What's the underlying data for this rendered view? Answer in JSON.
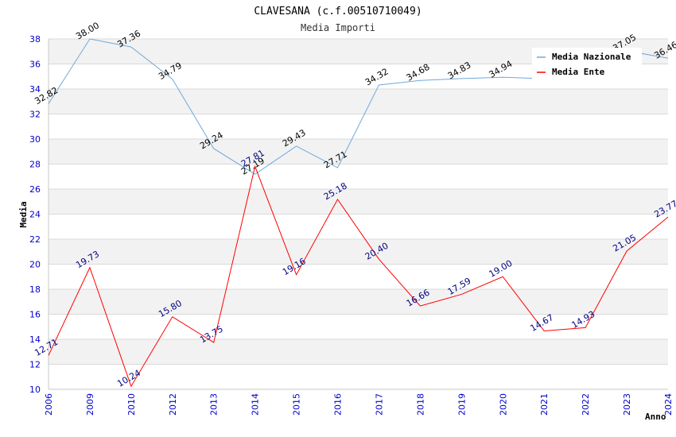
{
  "chart_data": {
    "type": "line",
    "title": "CLAVESANA (c.f.00510710049)",
    "subtitle": "Media Importi",
    "xlabel": "Anno",
    "ylabel": "Media",
    "ylim": [
      10,
      38
    ],
    "yticks": [
      10,
      12,
      14,
      16,
      18,
      20,
      22,
      24,
      26,
      28,
      30,
      32,
      34,
      36,
      38
    ],
    "categories": [
      "2006",
      "2009",
      "2010",
      "2012",
      "2013",
      "2014",
      "2015",
      "2016",
      "2017",
      "2018",
      "2019",
      "2020",
      "2021",
      "2022",
      "2023",
      "2024"
    ],
    "series": [
      {
        "name": "Media Nazionale",
        "color": "#6fa8dc",
        "label_color": "#000000",
        "values": [
          32.82,
          38.0,
          37.36,
          34.79,
          29.24,
          27.19,
          29.43,
          27.71,
          34.32,
          34.68,
          34.83,
          34.94,
          34.82,
          34.9,
          37.05,
          36.46
        ],
        "labels": [
          "32.82",
          "38.00",
          "37.36",
          "34.79",
          "29.24",
          "27.19",
          "29.43",
          "27.71",
          "34.32",
          "34.68",
          "34.83",
          "34.94",
          "",
          "",
          "37.05",
          "36.46"
        ]
      },
      {
        "name": "Media Ente",
        "color": "#ff0000",
        "label_color": "#000080",
        "values": [
          12.71,
          19.73,
          10.24,
          15.8,
          13.75,
          27.81,
          19.16,
          25.18,
          20.4,
          16.66,
          17.59,
          19.0,
          14.67,
          14.93,
          21.05,
          23.77
        ],
        "labels": [
          "12.71",
          "19.73",
          "10.24",
          "15.80",
          "13.75",
          "27.81",
          "19.16",
          "25.18",
          "20.40",
          "16.66",
          "17.59",
          "19.00",
          "14.67",
          "14.93",
          "21.05",
          "23.77"
        ]
      }
    ],
    "legend": {
      "placement": "top-right"
    },
    "colors": {
      "band": "#f2f2f2",
      "grid": "#d9d9d9",
      "tick_text": "#0000cc"
    }
  }
}
